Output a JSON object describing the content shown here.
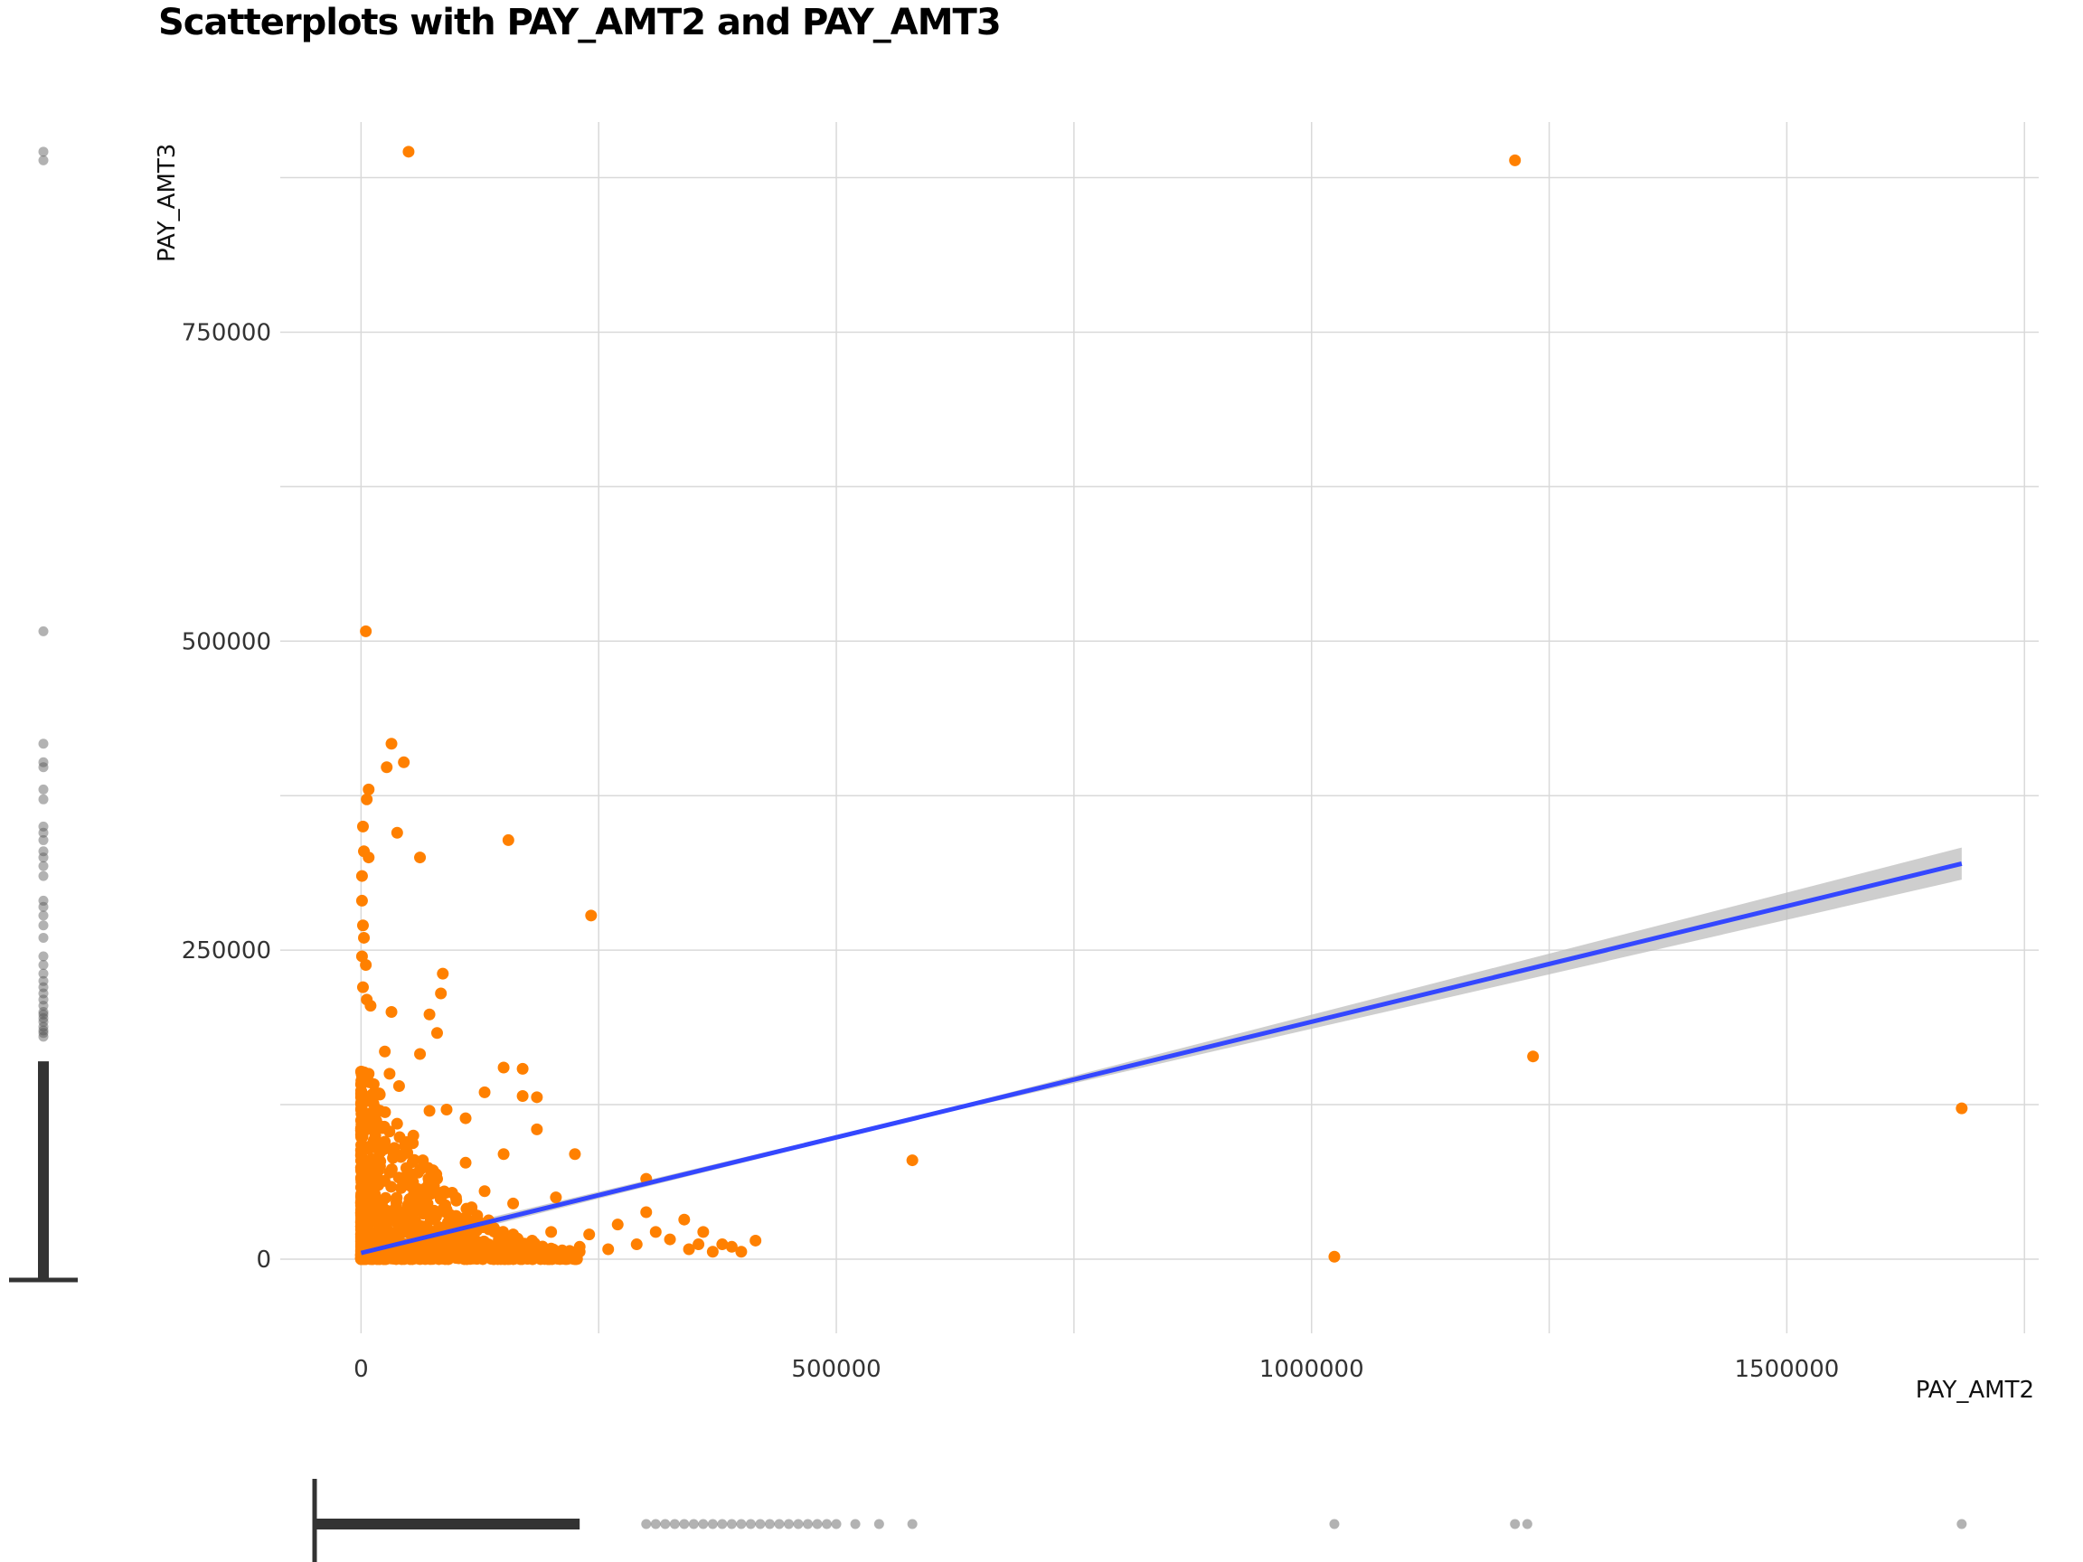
{
  "chart_data": {
    "type": "scatter",
    "title": "Scatterplots with PAY_AMT2 and PAY_AMT3",
    "xlabel": "PAY_AMT2",
    "ylabel": "PAY_AMT3",
    "xlim": [
      -85000,
      1765000
    ],
    "ylim": [
      -60000,
      920000
    ],
    "x_ticks": [
      0,
      500000,
      1000000,
      1500000
    ],
    "x_tick_labels": [
      "0",
      "500000",
      "1000000",
      "1500000"
    ],
    "y_ticks": [
      0,
      250000,
      500000,
      750000
    ],
    "y_tick_labels": [
      "0",
      "250000",
      "500000",
      "750000"
    ],
    "grid": true,
    "colors": {
      "points": "#ff8000",
      "fit_line": "#3447ff",
      "ci_band": "#bdbdbd",
      "marginal": "#555555",
      "grid": "#d9d9d9"
    },
    "series": [
      {
        "points": [
          [
            50000,
            896000
          ],
          [
            1214000,
            889000
          ],
          [
            5000,
            508000
          ],
          [
            32000,
            417000
          ],
          [
            45000,
            402000
          ],
          [
            27000,
            398000
          ],
          [
            8000,
            380000
          ],
          [
            6000,
            372000
          ],
          [
            38000,
            345000
          ],
          [
            155000,
            339000
          ],
          [
            62000,
            325000
          ],
          [
            2000,
            350000
          ],
          [
            3000,
            330000
          ],
          [
            8000,
            325000
          ],
          [
            1000,
            310000
          ],
          [
            242000,
            278000
          ],
          [
            1000,
            290000
          ],
          [
            2000,
            270000
          ],
          [
            3000,
            260000
          ],
          [
            1000,
            245000
          ],
          [
            5000,
            238000
          ],
          [
            86000,
            231000
          ],
          [
            84000,
            215000
          ],
          [
            2000,
            220000
          ],
          [
            6000,
            210000
          ],
          [
            10000,
            205000
          ],
          [
            32000,
            200000
          ],
          [
            72000,
            198000
          ],
          [
            80000,
            183000
          ],
          [
            62000,
            166000
          ],
          [
            25000,
            168000
          ],
          [
            150000,
            155000
          ],
          [
            170000,
            154000
          ],
          [
            30000,
            150000
          ],
          [
            40000,
            140000
          ],
          [
            130000,
            135000
          ],
          [
            170000,
            132000
          ],
          [
            185000,
            131000
          ],
          [
            72000,
            120000
          ],
          [
            90000,
            121000
          ],
          [
            110000,
            114000
          ],
          [
            185000,
            105000
          ],
          [
            55000,
            100000
          ],
          [
            150000,
            85000
          ],
          [
            225000,
            85000
          ],
          [
            65000,
            80000
          ],
          [
            110000,
            78000
          ],
          [
            60000,
            70000
          ],
          [
            80000,
            65000
          ],
          [
            300000,
            65000
          ],
          [
            130000,
            55000
          ],
          [
            205000,
            50000
          ],
          [
            160000,
            45000
          ],
          [
            300000,
            38000
          ],
          [
            340000,
            32000
          ],
          [
            270000,
            28000
          ],
          [
            310000,
            22000
          ],
          [
            360000,
            22000
          ],
          [
            240000,
            20000
          ],
          [
            200000,
            22000
          ],
          [
            380000,
            12000
          ],
          [
            415000,
            15000
          ],
          [
            355000,
            12000
          ],
          [
            390000,
            10000
          ],
          [
            325000,
            16000
          ],
          [
            290000,
            12000
          ],
          [
            260000,
            8000
          ],
          [
            230000,
            10000
          ],
          [
            345000,
            8000
          ],
          [
            370000,
            6000
          ],
          [
            400000,
            6000
          ],
          [
            580000,
            80000
          ],
          [
            1233000,
            164000
          ],
          [
            1684000,
            122000
          ],
          [
            1024000,
            2000
          ],
          [
            8000,
            150000
          ],
          [
            12000,
            130000
          ],
          [
            20000,
            120000
          ],
          [
            4000,
            110000
          ],
          [
            15000,
            100000
          ],
          [
            25000,
            95000
          ],
          [
            35000,
            90000
          ],
          [
            45000,
            85000
          ],
          [
            10000,
            80000
          ],
          [
            20000,
            75000
          ],
          [
            30000,
            70000
          ],
          [
            50000,
            60000
          ],
          [
            60000,
            50000
          ],
          [
            70000,
            45000
          ],
          [
            90000,
            40000
          ],
          [
            100000,
            35000
          ],
          [
            120000,
            30000
          ],
          [
            140000,
            25000
          ],
          [
            160000,
            20000
          ],
          [
            180000,
            15000
          ],
          [
            5000,
            60000
          ],
          [
            15000,
            50000
          ],
          [
            25000,
            40000
          ],
          [
            40000,
            30000
          ],
          [
            55000,
            25000
          ],
          [
            75000,
            20000
          ],
          [
            95000,
            15000
          ],
          [
            115000,
            10000
          ],
          [
            135000,
            8000
          ],
          [
            155000,
            6000
          ],
          [
            175000,
            4000
          ],
          [
            195000,
            3000
          ],
          [
            3000,
            40000
          ],
          [
            8000,
            30000
          ],
          [
            12000,
            20000
          ],
          [
            18000,
            15000
          ],
          [
            25000,
            10000
          ],
          [
            35000,
            8000
          ],
          [
            45000,
            5000
          ],
          [
            60000,
            3000
          ],
          [
            80000,
            2000
          ],
          [
            100000,
            1000
          ],
          [
            120000,
            1000
          ],
          [
            150000,
            500
          ],
          [
            2000,
            10000
          ],
          [
            5000,
            5000
          ],
          [
            1000,
            2000
          ],
          [
            3000,
            1000
          ]
        ]
      }
    ],
    "fit_line": {
      "x": [
        0,
        1684000
      ],
      "y": [
        5000,
        320000
      ],
      "ci_halfwidth_at_end": 13000
    },
    "marginal_x_boxplot_outliers": [
      300000,
      310000,
      320000,
      330000,
      340000,
      350000,
      360000,
      370000,
      380000,
      390000,
      400000,
      410000,
      420000,
      430000,
      440000,
      450000,
      460000,
      470000,
      480000,
      490000,
      500000,
      520000,
      545000,
      580000,
      1024000,
      1214000,
      1227000,
      1684000
    ],
    "marginal_y_boxplot_outliers": [
      896000,
      889000,
      508000,
      417000,
      402000,
      398000,
      380000,
      372000,
      350000,
      345000,
      339000,
      330000,
      325000,
      318000,
      310000,
      290000,
      285000,
      278000,
      270000,
      260000,
      245000,
      238000,
      231000,
      225000,
      220000,
      215000,
      210000,
      205000,
      200000,
      198000,
      195000,
      192000,
      188000,
      185000,
      183000,
      180000
    ]
  }
}
